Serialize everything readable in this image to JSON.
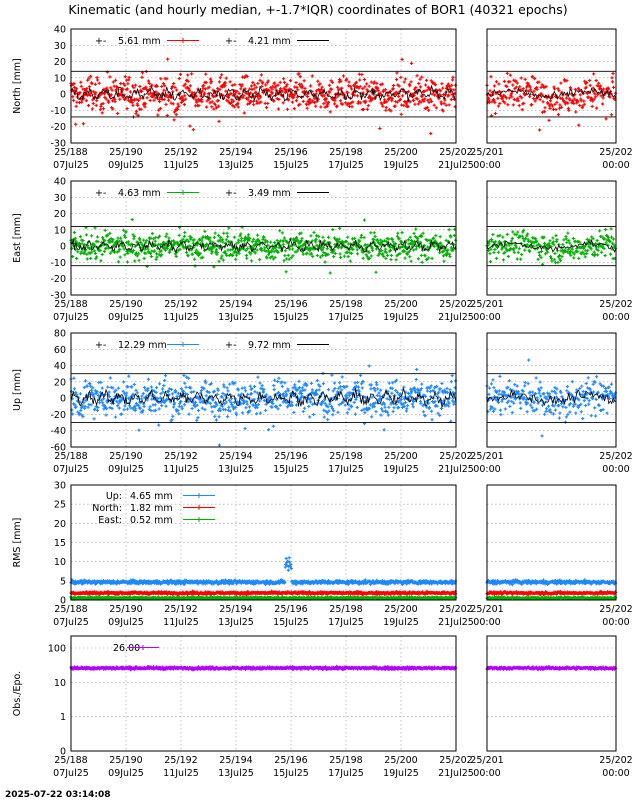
{
  "title": "Kinematic (and hourly median, +-1.7*IQR) coordinates of BOR1 (40321 epochs)",
  "timestamp": "2025-07-22 03:14:08",
  "colors": {
    "north": "#ff0000",
    "east": "#00b000",
    "up": "#1e88ff",
    "obs": "#b400ff",
    "median": "#000000"
  },
  "chart_data": [
    {
      "id": "north",
      "type": "scatter",
      "ylabel": "North [mm]",
      "ylim": [
        -30,
        40
      ],
      "yticks": [
        "40",
        "30",
        "20",
        "10",
        "0",
        "-10",
        "-20",
        "-30"
      ],
      "band": [
        -14,
        14
      ],
      "legend": [
        {
          "pm": "+-",
          "text": "5.61 mm",
          "color": "#ff0000",
          "style": "points"
        },
        {
          "pm": "+-",
          "text": "4.21 mm",
          "color": "#000000",
          "style": "line"
        }
      ],
      "series": [
        {
          "color": "#ff0000",
          "spread": 5.61,
          "center": 0
        }
      ]
    },
    {
      "id": "east",
      "type": "scatter",
      "ylabel": "East [mm]",
      "ylim": [
        -30,
        40
      ],
      "yticks": [
        "40",
        "30",
        "20",
        "10",
        "0",
        "-10",
        "-20",
        "-30"
      ],
      "band": [
        -12,
        12
      ],
      "legend": [
        {
          "pm": "+-",
          "text": "4.63 mm",
          "color": "#00b000",
          "style": "points"
        },
        {
          "pm": "+-",
          "text": "3.49 mm",
          "color": "#000000",
          "style": "line"
        }
      ],
      "series": [
        {
          "color": "#00b000",
          "spread": 4.63,
          "center": 0
        }
      ]
    },
    {
      "id": "up",
      "type": "scatter",
      "ylabel": "Up [mm]",
      "ylim": [
        -60,
        80
      ],
      "yticks": [
        "80",
        "60",
        "40",
        "20",
        "0",
        "-20",
        "-40",
        "-60"
      ],
      "band": [
        -30,
        30
      ],
      "legend": [
        {
          "pm": "+-",
          "text": "12.29 mm",
          "color": "#1e88ff",
          "style": "points"
        },
        {
          "pm": "+-",
          "text": "9.72 mm",
          "color": "#000000",
          "style": "line"
        }
      ],
      "series": [
        {
          "color": "#1e88ff",
          "spread": 12.29,
          "center": 0
        }
      ]
    },
    {
      "id": "rms",
      "type": "line",
      "ylabel": "RMS [mm]",
      "ylim": [
        0,
        30
      ],
      "yticks": [
        "30",
        "25",
        "20",
        "15",
        "10",
        "5",
        "0"
      ],
      "legend": [
        {
          "pm": "Up:",
          "text": "4.65 mm",
          "color": "#1e88ff",
          "style": "points"
        },
        {
          "pm": "North:",
          "text": "1.82 mm",
          "color": "#ff0000",
          "style": "points"
        },
        {
          "pm": "East:",
          "text": "0.52 mm",
          "color": "#00b000",
          "style": "points"
        }
      ],
      "series": [
        {
          "name": "Up",
          "color": "#1e88ff",
          "center": 4.65,
          "spread": 0.6
        },
        {
          "name": "North",
          "color": "#ff0000",
          "center": 1.82,
          "spread": 0.4
        },
        {
          "name": "East",
          "color": "#00b000",
          "center": 0.52,
          "spread": 0.3
        }
      ]
    },
    {
      "id": "obs",
      "type": "line",
      "ylabel": "Obs./Epo.",
      "ylim": [
        0,
        100
      ],
      "log": true,
      "yticks": [
        "100",
        "10",
        "1",
        "0"
      ],
      "legend": [
        {
          "pm": "",
          "text": "26.00",
          "color": "#b400ff",
          "style": "points"
        }
      ],
      "series": [
        {
          "name": "Obs",
          "color": "#b400ff",
          "center": 26.0,
          "spread": 2.5
        }
      ]
    }
  ],
  "xaxis_main": {
    "range": [
      188,
      202
    ],
    "ticks": [
      {
        "doy": 188,
        "top": "25/188",
        "bottom": "07Jul25"
      },
      {
        "doy": 190,
        "top": "25/190",
        "bottom": "09Jul25"
      },
      {
        "doy": 192,
        "top": "25/192",
        "bottom": "11Jul25"
      },
      {
        "doy": 194,
        "top": "25/194",
        "bottom": "13Jul25"
      },
      {
        "doy": 196,
        "top": "25/196",
        "bottom": "15Jul25"
      },
      {
        "doy": 198,
        "top": "25/198",
        "bottom": "17Jul25"
      },
      {
        "doy": 200,
        "top": "25/200",
        "bottom": "19Jul25"
      },
      {
        "doy": 202,
        "top": "25/202",
        "bottom": "21Jul25"
      }
    ]
  },
  "xaxis_zoom": {
    "range": [
      201,
      202
    ],
    "ticks": [
      {
        "doy": 201,
        "top": "25/201",
        "bottom": "00:00"
      },
      {
        "doy": 202,
        "top": "25/202",
        "bottom": "00:00"
      }
    ]
  }
}
